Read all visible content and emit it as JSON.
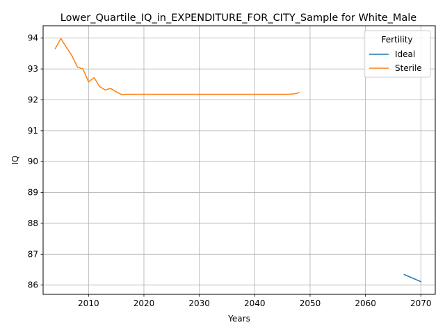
{
  "chart_data": {
    "type": "line",
    "title": "Lower_Quartile_IQ_in_EXPENDITURE_FOR_CITY_Sample for White_Male",
    "xlabel": "Years",
    "ylabel": "IQ",
    "xlim": [
      2001.8,
      2072.6
    ],
    "ylim": [
      85.7,
      94.4
    ],
    "xticks": [
      2010,
      2020,
      2030,
      2040,
      2050,
      2060,
      2070
    ],
    "yticks": [
      86,
      87,
      88,
      89,
      90,
      91,
      92,
      93,
      94
    ],
    "grid": true,
    "legend": {
      "title": "Fertility",
      "placement": "top-right"
    },
    "series": [
      {
        "name": "Ideal",
        "color": "#1f77b4",
        "x": [
          2067,
          2070
        ],
        "y": [
          86.34,
          86.11
        ]
      },
      {
        "name": "Sterile",
        "color": "#ff7f0e",
        "x": [
          2004,
          2005,
          2006,
          2007,
          2008,
          2009,
          2010,
          2011,
          2012,
          2013,
          2014,
          2015,
          2016,
          2017,
          2018,
          2019,
          2020,
          2021,
          2022,
          2023,
          2024,
          2025,
          2026,
          2027,
          2028,
          2029,
          2030,
          2031,
          2032,
          2033,
          2034,
          2035,
          2036,
          2037,
          2038,
          2039,
          2040,
          2041,
          2042,
          2043,
          2044,
          2045,
          2046,
          2047,
          2048
        ],
        "y": [
          93.66,
          93.99,
          93.7,
          93.43,
          93.06,
          93.0,
          92.58,
          92.72,
          92.43,
          92.32,
          92.37,
          92.26,
          92.17,
          92.18,
          92.18,
          92.18,
          92.18,
          92.18,
          92.18,
          92.18,
          92.18,
          92.18,
          92.18,
          92.18,
          92.18,
          92.18,
          92.18,
          92.18,
          92.18,
          92.18,
          92.18,
          92.18,
          92.18,
          92.18,
          92.18,
          92.18,
          92.18,
          92.18,
          92.18,
          92.18,
          92.18,
          92.18,
          92.18,
          92.19,
          92.23
        ]
      }
    ]
  }
}
